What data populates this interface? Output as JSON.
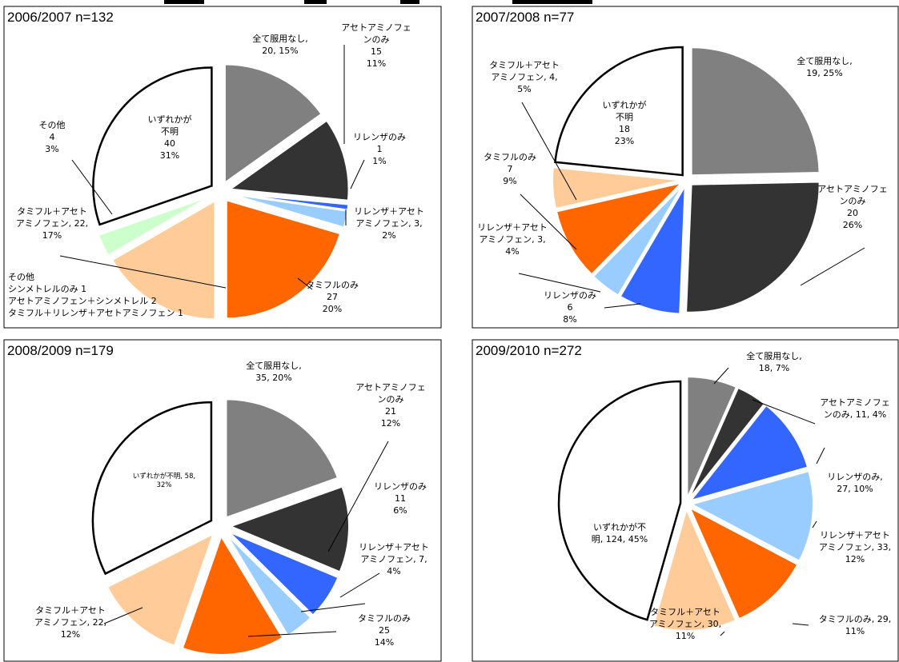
{
  "colors": {
    "none": "#808080",
    "acet": "#333333",
    "relenza": "#3366ff",
    "relenza_acet": "#99ccff",
    "tamiflu": "#ff6600",
    "tamiflu_acet": "#ffcc99",
    "other": "#ccffcc",
    "unknown": "#ffffff"
  },
  "chart_data": [
    {
      "type": "pie",
      "title": "2006/2007 n=132",
      "slices": [
        {
          "key": "none",
          "value": 20,
          "percent": 15
        },
        {
          "key": "acet",
          "value": 15,
          "percent": 11
        },
        {
          "key": "relenza",
          "value": 1,
          "percent": 1
        },
        {
          "key": "relenza_acet",
          "value": 3,
          "percent": 2
        },
        {
          "key": "tamiflu",
          "value": 27,
          "percent": 20
        },
        {
          "key": "tamiflu_acet",
          "value": 22,
          "percent": 17
        },
        {
          "key": "other",
          "value": 4,
          "percent": 3
        },
        {
          "key": "unknown",
          "value": 40,
          "percent": 31
        }
      ],
      "labels": [
        [
          "全て服用なし,",
          "20, 15%"
        ],
        [
          "アセトアミノフェ",
          "ンのみ",
          "15",
          "11%"
        ],
        [
          "リレンザのみ",
          "1",
          "1%"
        ],
        [
          "リレンザ＋アセト",
          "アミノフェン, 3,",
          "2%"
        ],
        [
          "タミフルのみ",
          "27",
          "20%"
        ],
        [
          "タミフル＋アセト",
          "アミノフェン, 22,",
          "17%"
        ],
        [
          "その他",
          "4",
          "3%"
        ],
        [
          "いずれかが",
          "不明",
          "40",
          "31%"
        ]
      ],
      "note": [
        "その他",
        "シンメトレルのみ 1",
        "アセトアミノフェン＋シンメトレル 2",
        "タミフル＋リレンザ＋アセトアミノフェン 1"
      ]
    },
    {
      "type": "pie",
      "title": "2007/2008 n=77",
      "slices": [
        {
          "key": "none",
          "value": 19,
          "percent": 25
        },
        {
          "key": "acet",
          "value": 20,
          "percent": 26
        },
        {
          "key": "relenza",
          "value": 6,
          "percent": 8
        },
        {
          "key": "relenza_acet",
          "value": 3,
          "percent": 4
        },
        {
          "key": "tamiflu",
          "value": 7,
          "percent": 9
        },
        {
          "key": "tamiflu_acet",
          "value": 4,
          "percent": 5
        },
        {
          "key": "unknown",
          "value": 18,
          "percent": 23
        }
      ],
      "labels": [
        [
          "全て服用なし,",
          "19, 25%"
        ],
        [
          "アセトアミノフェ",
          "ンのみ",
          "20",
          "26%"
        ],
        [
          "リレンザのみ",
          "6",
          "8%"
        ],
        [
          "リレンザ＋アセト",
          "アミノフェン, 3,",
          "4%"
        ],
        [
          "タミフルのみ",
          "7",
          "9%"
        ],
        [
          "タミフル＋アセト",
          "アミノフェン, 4,",
          "5%"
        ],
        [
          "いずれかが",
          "不明",
          "18",
          "23%"
        ]
      ]
    },
    {
      "type": "pie",
      "title": "2008/2009 n=179",
      "slices": [
        {
          "key": "none",
          "value": 35,
          "percent": 20
        },
        {
          "key": "acet",
          "value": 21,
          "percent": 12
        },
        {
          "key": "relenza",
          "value": 11,
          "percent": 6
        },
        {
          "key": "relenza_acet",
          "value": 7,
          "percent": 4
        },
        {
          "key": "tamiflu",
          "value": 25,
          "percent": 14
        },
        {
          "key": "tamiflu_acet",
          "value": 22,
          "percent": 12
        },
        {
          "key": "unknown",
          "value": 58,
          "percent": 32
        }
      ],
      "labels": [
        [
          "全て服用なし,",
          "35, 20%"
        ],
        [
          "アセトアミノフェ",
          "ンのみ",
          "21",
          "12%"
        ],
        [
          "リレンザのみ",
          "11",
          "6%"
        ],
        [
          "リレンザ＋アセト",
          "アミノフェン, 7,",
          "4%"
        ],
        [
          "タミフルのみ",
          "25",
          "14%"
        ],
        [
          "タミフル＋アセト",
          "アミノフェン, 22,",
          "12%"
        ],
        [
          "いずれかが不明, 58,",
          "32%"
        ]
      ]
    },
    {
      "type": "pie",
      "title": "2009/2010 n=272",
      "slices": [
        {
          "key": "none",
          "value": 18,
          "percent": 7
        },
        {
          "key": "acet",
          "value": 11,
          "percent": 4
        },
        {
          "key": "relenza",
          "value": 27,
          "percent": 10
        },
        {
          "key": "relenza_acet",
          "value": 33,
          "percent": 12
        },
        {
          "key": "tamiflu",
          "value": 29,
          "percent": 11
        },
        {
          "key": "tamiflu_acet",
          "value": 30,
          "percent": 11
        },
        {
          "key": "unknown",
          "value": 124,
          "percent": 45
        }
      ],
      "labels": [
        [
          "全て服用なし,",
          "18, 7%"
        ],
        [
          "アセトアミノフェ",
          "ンのみ, 11, 4%"
        ],
        [
          "リレンザのみ,",
          "27, 10%"
        ],
        [
          "リレンザ＋アセト",
          "アミノフェン, 33,",
          "12%"
        ],
        [
          "タミフルのみ, 29,",
          "11%"
        ],
        [
          "タミフル＋アセト",
          "アミノフェン, 30,",
          "11%"
        ],
        [
          "いずれかが不",
          "明, 124, 45%"
        ]
      ]
    }
  ]
}
